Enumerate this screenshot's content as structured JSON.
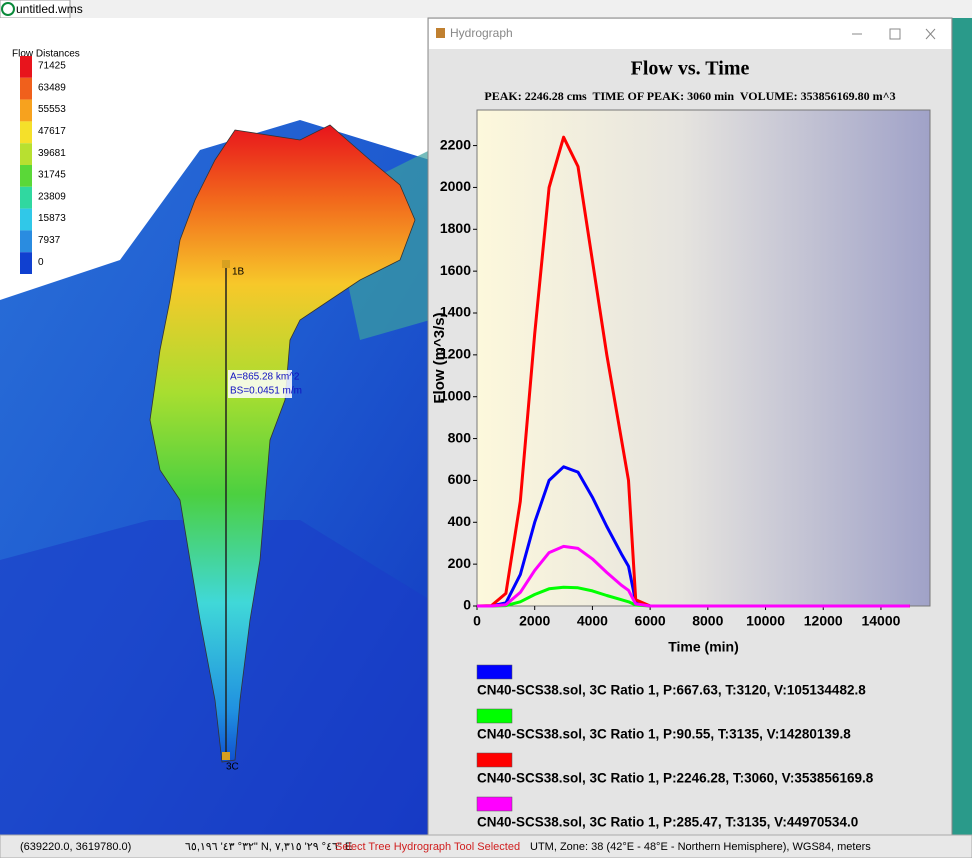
{
  "document_tab": {
    "title": "untitled.wms"
  },
  "flow_legend": {
    "title": "Flow Distances",
    "values": [
      71425,
      63489,
      55553,
      47617,
      39681,
      31745,
      23809,
      15873,
      7937,
      0
    ],
    "colors": [
      "#e8141c",
      "#f0601c",
      "#f7a21e",
      "#f5e02a",
      "#b8e030",
      "#5ad838",
      "#30d8a0",
      "#30c8e8",
      "#2a8ce0",
      "#1040d0"
    ]
  },
  "map_labels": {
    "upper_outlet": "1B",
    "lower_outlet": "3C",
    "area": "A=865.28 km^2",
    "slope": "BS=0.0451 m/m"
  },
  "hydrograph_window": {
    "title": "Hydrograph"
  },
  "chart_data": {
    "type": "line",
    "title": "Flow vs. Time",
    "subtitle": "PEAK: 2246.28 cms  TIME OF PEAK: 3060 min  VOLUME: 353856169.80 m^3",
    "x_label": "Time (min)",
    "y_label": "Flow (m^3/s)",
    "x": [
      0,
      500,
      1000,
      1500,
      2000,
      2500,
      3000,
      3500,
      4000,
      4500,
      5000,
      5250,
      5500,
      6000,
      8000,
      10000,
      12000,
      14000,
      15000
    ],
    "series": [
      {
        "name": "CN40-SCS38.sol, 3C Ratio 1, P:667.63, T:3120, V:105134482.8",
        "color": "#0000ff",
        "values": [
          0,
          0,
          15,
          150,
          400,
          600,
          665,
          640,
          520,
          380,
          250,
          190,
          20,
          0,
          0,
          0,
          0,
          0,
          0
        ]
      },
      {
        "name": "CN40-SCS38.sol, 3C Ratio 1, P:90.55, T:3135, V:14280139.8",
        "color": "#00ff00",
        "values": [
          0,
          0,
          2,
          20,
          55,
          82,
          90,
          87,
          72,
          50,
          30,
          20,
          5,
          0,
          0,
          0,
          0,
          0,
          0
        ]
      },
      {
        "name": "CN40-SCS38.sol, 3C Ratio 1, P:2246.28, T:3060, V:353856169.8",
        "color": "#ff0000",
        "values": [
          0,
          2,
          60,
          500,
          1300,
          2000,
          2240,
          2100,
          1650,
          1200,
          800,
          600,
          30,
          0,
          0,
          0,
          0,
          0,
          0
        ]
      },
      {
        "name": "CN40-SCS38.sol, 3C Ratio 1, P:285.47, T:3135, V:44970534.0",
        "color": "#ff00ff",
        "values": [
          0,
          0,
          6,
          65,
          170,
          255,
          285,
          275,
          225,
          160,
          100,
          75,
          10,
          0,
          0,
          0,
          0,
          0,
          0
        ]
      }
    ],
    "xlim": [
      0,
      15700
    ],
    "ylim": [
      0,
      2370
    ],
    "xticks": [
      0,
      2000,
      4000,
      6000,
      8000,
      10000,
      12000,
      14000
    ],
    "yticks": [
      0,
      200,
      400,
      600,
      800,
      1000,
      1200,
      1400,
      1600,
      1800,
      2000,
      2200
    ]
  },
  "status_bar": [
    "(639220.0, 3619780.0)",
    "٣٢° ٤٣' ٦٥,١٩٦\" N, ٤٦° ٢٩' ٧,٣١٥\" E",
    "Select Tree Hydrograph Tool Selected",
    "UTM, Zone: 38 (42°E - 48°E - Northern Hemisphere), WGS84, meters"
  ]
}
